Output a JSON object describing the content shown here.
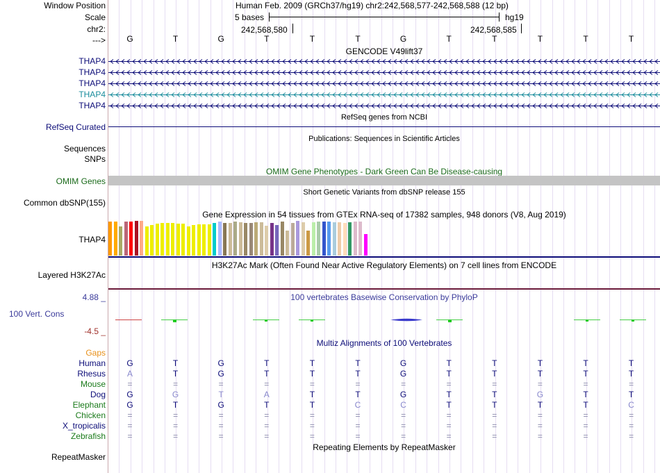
{
  "ruler": {
    "labels": {
      "window": "Window Position",
      "scale": "Scale",
      "chrom": "chr2:",
      "strand": "--->"
    },
    "assembly_text": "Human Feb. 2009 (GRCh37/hg19)   chr2:242,568,577-242,568,588 (12 bp)",
    "scale_text": "5 bases",
    "db_text": "hg19",
    "pos1": "242,568,580",
    "pos2": "242,568,585",
    "bases": [
      "G",
      "T",
      "G",
      "T",
      "T",
      "T",
      "G",
      "T",
      "T",
      "T",
      "T",
      "T"
    ]
  },
  "gencode": {
    "title": "GENCODE V49lift37",
    "rows": [
      {
        "label": "THAP4",
        "color": "#0c0c78"
      },
      {
        "label": "THAP4",
        "color": "#0c0c78"
      },
      {
        "label": "THAP4",
        "color": "#0c0c78"
      },
      {
        "label": "THAP4",
        "color": "#1a8c9c"
      },
      {
        "label": "THAP4",
        "color": "#0c0c78"
      }
    ]
  },
  "refseq": {
    "title": "RefSeq genes from NCBI",
    "label": "RefSeq Curated"
  },
  "pubs": {
    "title": "Publications: Sequences in Scientific Articles",
    "label1": "Sequences",
    "label2": "SNPs"
  },
  "omim": {
    "title": "OMIM Gene Phenotypes - Dark Green Can Be Disease-causing",
    "label": "OMIM Genes"
  },
  "dbsnp": {
    "title": "Short Genetic Variants from dbSNP release 155",
    "label": "Common dbSNP(155)"
  },
  "gtex": {
    "title": "Gene Expression in 54 tissues from GTEx RNA-seq of 17382 samples, 948 donors (V8, Aug 2019)",
    "label": "THAP4",
    "bars": [
      {
        "v": 0.98,
        "c": "#ff9900"
      },
      {
        "v": 0.98,
        "c": "#ffaa00"
      },
      {
        "v": 0.85,
        "c": "#aaaa66"
      },
      {
        "v": 0.98,
        "c": "#bb6677"
      },
      {
        "v": 0.98,
        "c": "#ff0000"
      },
      {
        "v": 1.0,
        "c": "#aa1122"
      },
      {
        "v": 1.0,
        "c": "#ffaa88"
      },
      {
        "v": 0.85,
        "c": "#eeee00"
      },
      {
        "v": 0.88,
        "c": "#eeee00"
      },
      {
        "v": 0.92,
        "c": "#eeee00"
      },
      {
        "v": 0.94,
        "c": "#eeee00"
      },
      {
        "v": 0.94,
        "c": "#eeee00"
      },
      {
        "v": 0.94,
        "c": "#eeee00"
      },
      {
        "v": 0.92,
        "c": "#eeee00"
      },
      {
        "v": 0.92,
        "c": "#eeee00"
      },
      {
        "v": 0.84,
        "c": "#eeee00"
      },
      {
        "v": 0.88,
        "c": "#eeee00"
      },
      {
        "v": 0.9,
        "c": "#eeee00"
      },
      {
        "v": 0.9,
        "c": "#eeee00"
      },
      {
        "v": 0.9,
        "c": "#eeee00"
      },
      {
        "v": 0.94,
        "c": "#00cccc"
      },
      {
        "v": 0.98,
        "c": "#aabbff"
      },
      {
        "v": 0.95,
        "c": "#887755"
      },
      {
        "v": 0.94,
        "c": "#ccbb99"
      },
      {
        "v": 0.98,
        "c": "#aaaa88"
      },
      {
        "v": 0.96,
        "c": "#ccbb99"
      },
      {
        "v": 0.94,
        "c": "#998866"
      },
      {
        "v": 0.94,
        "c": "#998877"
      },
      {
        "v": 0.96,
        "c": "#bbaa77"
      },
      {
        "v": 0.96,
        "c": "#ccbb99"
      },
      {
        "v": 0.86,
        "c": "#ddccaa"
      },
      {
        "v": 0.94,
        "c": "#773388"
      },
      {
        "v": 0.88,
        "c": "#7766bb"
      },
      {
        "v": 0.98,
        "c": "#998866"
      },
      {
        "v": 0.72,
        "c": "#ccbb99"
      },
      {
        "v": 0.94,
        "c": "#bbaa99"
      },
      {
        "v": 1.0,
        "c": "#aa99dd"
      },
      {
        "v": 0.96,
        "c": "#ddccaa"
      },
      {
        "v": 0.72,
        "c": "#cc9944"
      },
      {
        "v": 0.96,
        "c": "#bbeeaa"
      },
      {
        "v": 0.98,
        "c": "#aaccaa"
      },
      {
        "v": 0.98,
        "c": "#3355cc"
      },
      {
        "v": 0.98,
        "c": "#5599ee"
      },
      {
        "v": 0.96,
        "c": "#aaccdd"
      },
      {
        "v": 0.96,
        "c": "#eeccaa"
      },
      {
        "v": 0.94,
        "c": "#ffddbb"
      },
      {
        "v": 0.96,
        "c": "#339966"
      },
      {
        "v": 0.98,
        "c": "#ddbbcc"
      },
      {
        "v": 0.98,
        "c": "#ddbbcc"
      },
      {
        "v": 0.62,
        "c": "#ff00ff"
      }
    ]
  },
  "h3k27ac": {
    "title": "H3K27Ac Mark (Often Found Near Active Regulatory Elements) on 7 cell lines from ENCODE",
    "label": "Layered H3K27Ac"
  },
  "phylop": {
    "title": "100 vertebrates Basewise Conservation by PhyloP",
    "label": "100 Vert. Cons",
    "max": "4.88 _",
    "min": "-4.5 _"
  },
  "multiz": {
    "title": "Multiz Alignments of 100 Vertebrates",
    "gaps_label": "Gaps",
    "species": [
      {
        "name": "Human",
        "color": "#0c0c78",
        "bases": [
          "G",
          "T",
          "G",
          "T",
          "T",
          "T",
          "G",
          "T",
          "T",
          "T",
          "T",
          "T"
        ]
      },
      {
        "name": "Rhesus",
        "color": "#0c0c78",
        "bases": [
          "A",
          "T",
          "G",
          "T",
          "T",
          "T",
          "G",
          "T",
          "T",
          "T",
          "T",
          "T"
        ]
      },
      {
        "name": "Mouse",
        "color": "#1a7a1a",
        "bases": [
          "=",
          "=",
          "=",
          "=",
          "=",
          "=",
          "=",
          "=",
          "=",
          "=",
          "=",
          "="
        ]
      },
      {
        "name": "Dog",
        "color": "#0c0c78",
        "bases": [
          "G",
          "G",
          "T",
          "A",
          "T",
          "T",
          "G",
          "T",
          "T",
          "G",
          "T",
          "T"
        ]
      },
      {
        "name": "Elephant",
        "color": "#1a7a1a",
        "bases": [
          "G",
          "T",
          "G",
          "T",
          "T",
          "C",
          "C",
          "T",
          "T",
          "T",
          "T",
          "C"
        ]
      },
      {
        "name": "Chicken",
        "color": "#1a7a1a",
        "bases": [
          "=",
          "=",
          "=",
          "=",
          "=",
          "=",
          "=",
          "=",
          "=",
          "=",
          "=",
          "="
        ]
      },
      {
        "name": "X_tropicalis",
        "color": "#0c0c78",
        "bases": [
          "=",
          "=",
          "=",
          "=",
          "=",
          "=",
          "=",
          "=",
          "=",
          "=",
          "=",
          "="
        ]
      },
      {
        "name": "Zebrafish",
        "color": "#1a7a1a",
        "bases": [
          "=",
          "=",
          "=",
          "=",
          "=",
          "=",
          "=",
          "=",
          "=",
          "=",
          "=",
          "="
        ]
      }
    ]
  },
  "repeatmasker": {
    "title": "Repeating Elements by RepeatMasker",
    "label": "RepeatMasker"
  }
}
